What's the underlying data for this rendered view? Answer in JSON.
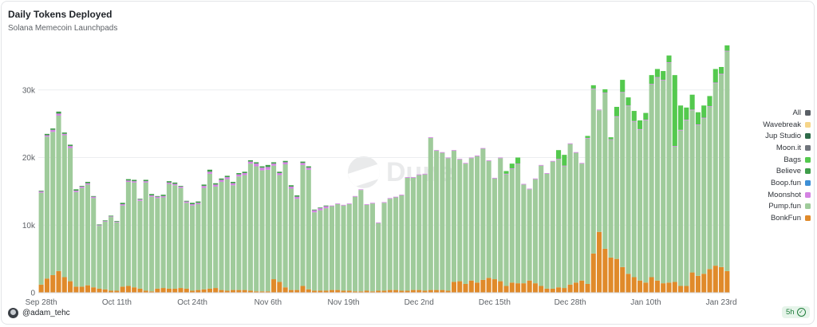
{
  "header": {
    "title": "Daily Tokens Deployed",
    "subtitle": "Solana Memecoin Launchpads"
  },
  "watermark": "Dune",
  "footer": {
    "user": "@adam_tehc",
    "refresh": "5h"
  },
  "legend": [
    {
      "name": "All",
      "color": "#5a5f66"
    },
    {
      "name": "Wavebreak",
      "color": "#f6d58a"
    },
    {
      "name": "Jup Studio",
      "color": "#2f6b4a"
    },
    {
      "name": "Moon.it",
      "color": "#70757c"
    },
    {
      "name": "Bags",
      "color": "#54c94e"
    },
    {
      "name": "Believe",
      "color": "#3f9e4a"
    },
    {
      "name": "Boop.fun",
      "color": "#3d8fd6"
    },
    {
      "name": "Moonshot",
      "color": "#d483e3"
    },
    {
      "name": "Pump.fun",
      "color": "#9fcb9b"
    },
    {
      "name": "BonkFun",
      "color": "#e08a2a"
    }
  ],
  "chart_data": {
    "type": "bar",
    "stacked": true,
    "title": "Daily Tokens Deployed",
    "subtitle": "Solana Memecoin Launchpads",
    "ylim": [
      0,
      38000
    ],
    "yticks": [
      0,
      10000,
      20000,
      30000
    ],
    "ytick_labels": [
      "0",
      "10k",
      "20k",
      "30k"
    ],
    "grid": true,
    "legend_position": "right",
    "x_tick_labels": [
      {
        "label": "Sep 28th",
        "index": 0
      },
      {
        "label": "Oct 11th",
        "index": 13
      },
      {
        "label": "Oct 24th",
        "index": 26
      },
      {
        "label": "Nov 6th",
        "index": 39
      },
      {
        "label": "Nov 19th",
        "index": 52
      },
      {
        "label": "Dec 2nd",
        "index": 65
      },
      {
        "label": "Dec 15th",
        "index": 78
      },
      {
        "label": "Dec 28th",
        "index": 91
      },
      {
        "label": "Jan 10th",
        "index": 104
      },
      {
        "label": "Jan 23rd",
        "index": 117
      }
    ],
    "series": [
      {
        "name": "BonkFun",
        "color": "#e08a2a",
        "values": [
          1200,
          2100,
          2600,
          3200,
          2300,
          1700,
          900,
          900,
          1100,
          800,
          600,
          500,
          300,
          300,
          900,
          1000,
          800,
          600,
          300,
          200,
          600,
          700,
          600,
          600,
          700,
          600,
          300,
          400,
          500,
          600,
          700,
          400,
          300,
          400,
          400,
          400,
          300,
          200,
          200,
          200,
          2000,
          1600,
          800,
          400,
          400,
          1000,
          500,
          300,
          300,
          300,
          400,
          400,
          300,
          300,
          200,
          200,
          300,
          200,
          300,
          300,
          400,
          400,
          300,
          300,
          400,
          400,
          300,
          400,
          400,
          400,
          300,
          1600,
          1700,
          1300,
          1800,
          1500,
          1900,
          2200,
          2000,
          1700,
          1000,
          1500,
          1400,
          1400,
          1800,
          1400,
          1000,
          600,
          600,
          800,
          700,
          1200,
          1500,
          1800,
          1300,
          5800,
          9000,
          6500,
          5200,
          5000,
          3800,
          2800,
          2300,
          1800,
          1500,
          2300,
          1800,
          1400,
          1500,
          1600,
          1000,
          1000,
          3000,
          2500,
          2800,
          3500,
          4000,
          3800,
          3200
        ]
      },
      {
        "name": "Pump.fun",
        "color": "#9fcb9b",
        "values": [
          13600,
          21000,
          21200,
          23000,
          21000,
          19700,
          14000,
          14600,
          14900,
          13200,
          9300,
          10000,
          10900,
          10100,
          12000,
          15400,
          15500,
          13000,
          16000,
          14000,
          13400,
          13400,
          15500,
          15300,
          14800,
          12700,
          12600,
          12700,
          15000,
          17000,
          15000,
          16000,
          16500,
          15500,
          16800,
          17000,
          18800,
          18500,
          17900,
          18000,
          16800,
          15800,
          18200,
          15000,
          13500,
          17900,
          17700,
          11600,
          11900,
          12200,
          12400,
          12700,
          12600,
          12800,
          14000,
          15000,
          12700,
          13000,
          10000,
          13000,
          13500,
          13700,
          14100,
          16700,
          16600,
          17000,
          17200,
          22500,
          20600,
          20300,
          19600,
          19400,
          18000,
          17800,
          18100,
          18700,
          19400,
          17300,
          14900,
          18200,
          16500,
          16800,
          17600,
          14600,
          13500,
          15400,
          17800,
          17000,
          18800,
          18900,
          18000,
          20800,
          19200,
          17300,
          21500,
          24300,
          18000,
          23000,
          17400,
          21000,
          25800,
          24800,
          23000,
          22300,
          24000,
          28500,
          30000,
          30000,
          32500,
          20000,
          23000,
          24500,
          24000,
          22300,
          23000,
          24000,
          27000,
          28500,
          32500
        ]
      },
      {
        "name": "Moonshot",
        "color": "#d483e3",
        "values": [
          200,
          200,
          300,
          300,
          200,
          300,
          200,
          200,
          200,
          200,
          100,
          100,
          100,
          100,
          200,
          200,
          200,
          200,
          200,
          200,
          200,
          200,
          200,
          200,
          200,
          200,
          200,
          200,
          300,
          300,
          300,
          300,
          300,
          300,
          300,
          300,
          300,
          400,
          400,
          400,
          300,
          300,
          300,
          300,
          300,
          300,
          300,
          300,
          300,
          300,
          100,
          100,
          100,
          100,
          100,
          100,
          100,
          100,
          100,
          100,
          100,
          100,
          100,
          100,
          100,
          100,
          100,
          100,
          100,
          100,
          100,
          100,
          100,
          100,
          100,
          100,
          100,
          100,
          100,
          100,
          100,
          100,
          100,
          100,
          100,
          100,
          100,
          100,
          100,
          100,
          100,
          100,
          100,
          100,
          100,
          100,
          100,
          100,
          100,
          100,
          100,
          100,
          100,
          100,
          100,
          100,
          100,
          100,
          100,
          100,
          100,
          100,
          100,
          100,
          100,
          100,
          100,
          100,
          100
        ]
      },
      {
        "name": "Believe",
        "color": "#3f9e4a",
        "values": [
          100,
          200,
          200,
          300,
          200,
          200,
          200,
          100,
          200,
          100,
          100,
          100,
          100,
          100,
          200,
          200,
          200,
          100,
          200,
          200,
          100,
          200,
          200,
          200,
          100,
          100,
          200,
          200,
          200,
          300,
          200,
          200,
          200,
          200,
          200,
          200,
          200,
          200,
          200,
          300,
          200,
          200,
          200,
          200,
          200,
          200,
          200,
          100,
          100,
          100,
          0,
          0,
          0,
          0,
          0,
          0,
          0,
          0,
          0,
          0,
          0,
          0,
          0,
          0,
          0,
          0,
          0,
          0,
          0,
          0,
          0,
          0,
          0,
          0,
          0,
          0,
          0,
          0,
          0,
          0,
          0,
          0,
          0,
          0,
          0,
          0,
          0,
          0,
          0,
          0,
          0,
          0,
          0,
          0,
          0,
          0,
          0,
          0,
          0,
          0,
          0,
          0,
          0,
          0,
          0,
          0,
          0,
          0,
          0,
          0,
          0,
          0,
          0,
          0,
          0,
          0,
          0,
          0,
          0
        ]
      },
      {
        "name": "Bags",
        "color": "#54c94e",
        "values": [
          0,
          0,
          0,
          0,
          0,
          0,
          0,
          0,
          0,
          0,
          0,
          0,
          0,
          0,
          0,
          0,
          0,
          0,
          0,
          0,
          0,
          0,
          0,
          0,
          0,
          0,
          0,
          0,
          0,
          0,
          0,
          0,
          0,
          0,
          0,
          0,
          0,
          0,
          0,
          0,
          0,
          0,
          0,
          0,
          0,
          0,
          0,
          0,
          0,
          0,
          0,
          0,
          0,
          0,
          0,
          0,
          0,
          0,
          0,
          0,
          0,
          0,
          0,
          0,
          0,
          0,
          0,
          0,
          0,
          0,
          0,
          0,
          0,
          0,
          0,
          0,
          0,
          0,
          0,
          0,
          400,
          700,
          900,
          0,
          0,
          0,
          0,
          0,
          0,
          1300,
          1600,
          0,
          0,
          0,
          300,
          500,
          0,
          500,
          300,
          1400,
          1800,
          1200,
          1500,
          1300,
          1000,
          1300,
          1200,
          1300,
          1000,
          10500,
          3600,
          1800,
          2200,
          1800,
          1800,
          1500,
          2000,
          1000,
          800
        ]
      },
      {
        "name": "Moon.it",
        "color": "#70757c",
        "values": [
          0,
          0,
          0,
          0,
          0,
          0,
          0,
          0,
          0,
          0,
          0,
          0,
          0,
          0,
          0,
          0,
          0,
          0,
          0,
          0,
          0,
          0,
          0,
          0,
          0,
          0,
          0,
          0,
          0,
          0,
          0,
          0,
          0,
          0,
          0,
          0,
          0,
          0,
          0,
          0,
          0,
          0,
          0,
          0,
          0,
          0,
          0,
          0,
          0,
          0,
          0,
          0,
          0,
          0,
          0,
          0,
          0,
          0,
          0,
          0,
          0,
          0,
          0,
          0,
          0,
          0,
          0,
          0,
          0,
          0,
          0,
          0,
          0,
          0,
          0,
          0,
          0,
          0,
          0,
          0,
          0,
          0,
          0,
          0,
          0,
          0,
          0,
          0,
          0,
          0,
          0,
          0,
          0,
          0,
          0,
          0,
          0,
          0,
          0,
          0,
          0,
          0,
          0,
          0,
          0,
          0,
          0,
          0,
          0,
          0,
          0,
          0,
          0,
          0,
          0,
          0,
          0,
          0,
          0
        ]
      },
      {
        "name": "Jup Studio",
        "color": "#2f6b4a",
        "values": [
          0,
          0,
          0,
          0,
          0,
          0,
          0,
          0,
          0,
          0,
          0,
          0,
          0,
          0,
          0,
          0,
          0,
          0,
          0,
          0,
          0,
          0,
          0,
          0,
          0,
          0,
          0,
          0,
          0,
          0,
          0,
          0,
          0,
          0,
          0,
          0,
          0,
          0,
          0,
          0,
          0,
          0,
          0,
          0,
          0,
          0,
          0,
          0,
          0,
          0,
          0,
          0,
          0,
          0,
          0,
          0,
          0,
          0,
          0,
          0,
          0,
          0,
          0,
          0,
          0,
          0,
          0,
          0,
          0,
          0,
          0,
          0,
          0,
          0,
          0,
          0,
          0,
          0,
          0,
          0,
          0,
          0,
          0,
          0,
          0,
          0,
          0,
          0,
          0,
          0,
          0,
          0,
          0,
          0,
          0,
          0,
          0,
          0,
          0,
          0,
          0,
          0,
          0,
          0,
          0,
          0,
          0,
          0,
          0,
          0,
          0,
          0,
          0,
          0,
          0,
          0,
          0,
          0,
          0
        ]
      },
      {
        "name": "Wavebreak",
        "color": "#f6d58a",
        "values": [
          0,
          0,
          0,
          0,
          0,
          0,
          0,
          0,
          0,
          0,
          0,
          0,
          0,
          0,
          0,
          0,
          0,
          0,
          0,
          0,
          0,
          0,
          0,
          0,
          0,
          0,
          0,
          0,
          0,
          0,
          0,
          0,
          0,
          0,
          0,
          0,
          0,
          0,
          0,
          0,
          0,
          0,
          0,
          0,
          0,
          0,
          0,
          0,
          0,
          0,
          0,
          0,
          0,
          0,
          0,
          0,
          0,
          0,
          0,
          0,
          0,
          0,
          0,
          0,
          0,
          0,
          0,
          0,
          0,
          0,
          0,
          0,
          0,
          0,
          0,
          0,
          0,
          0,
          0,
          0,
          0,
          0,
          0,
          0,
          0,
          0,
          0,
          0,
          0,
          0,
          0,
          0,
          0,
          0,
          0,
          0,
          0,
          0,
          0,
          0,
          0,
          0,
          0,
          0,
          0,
          0,
          0,
          0,
          0,
          0,
          0,
          0,
          0,
          0,
          0,
          0,
          0,
          0,
          0
        ]
      }
    ]
  }
}
